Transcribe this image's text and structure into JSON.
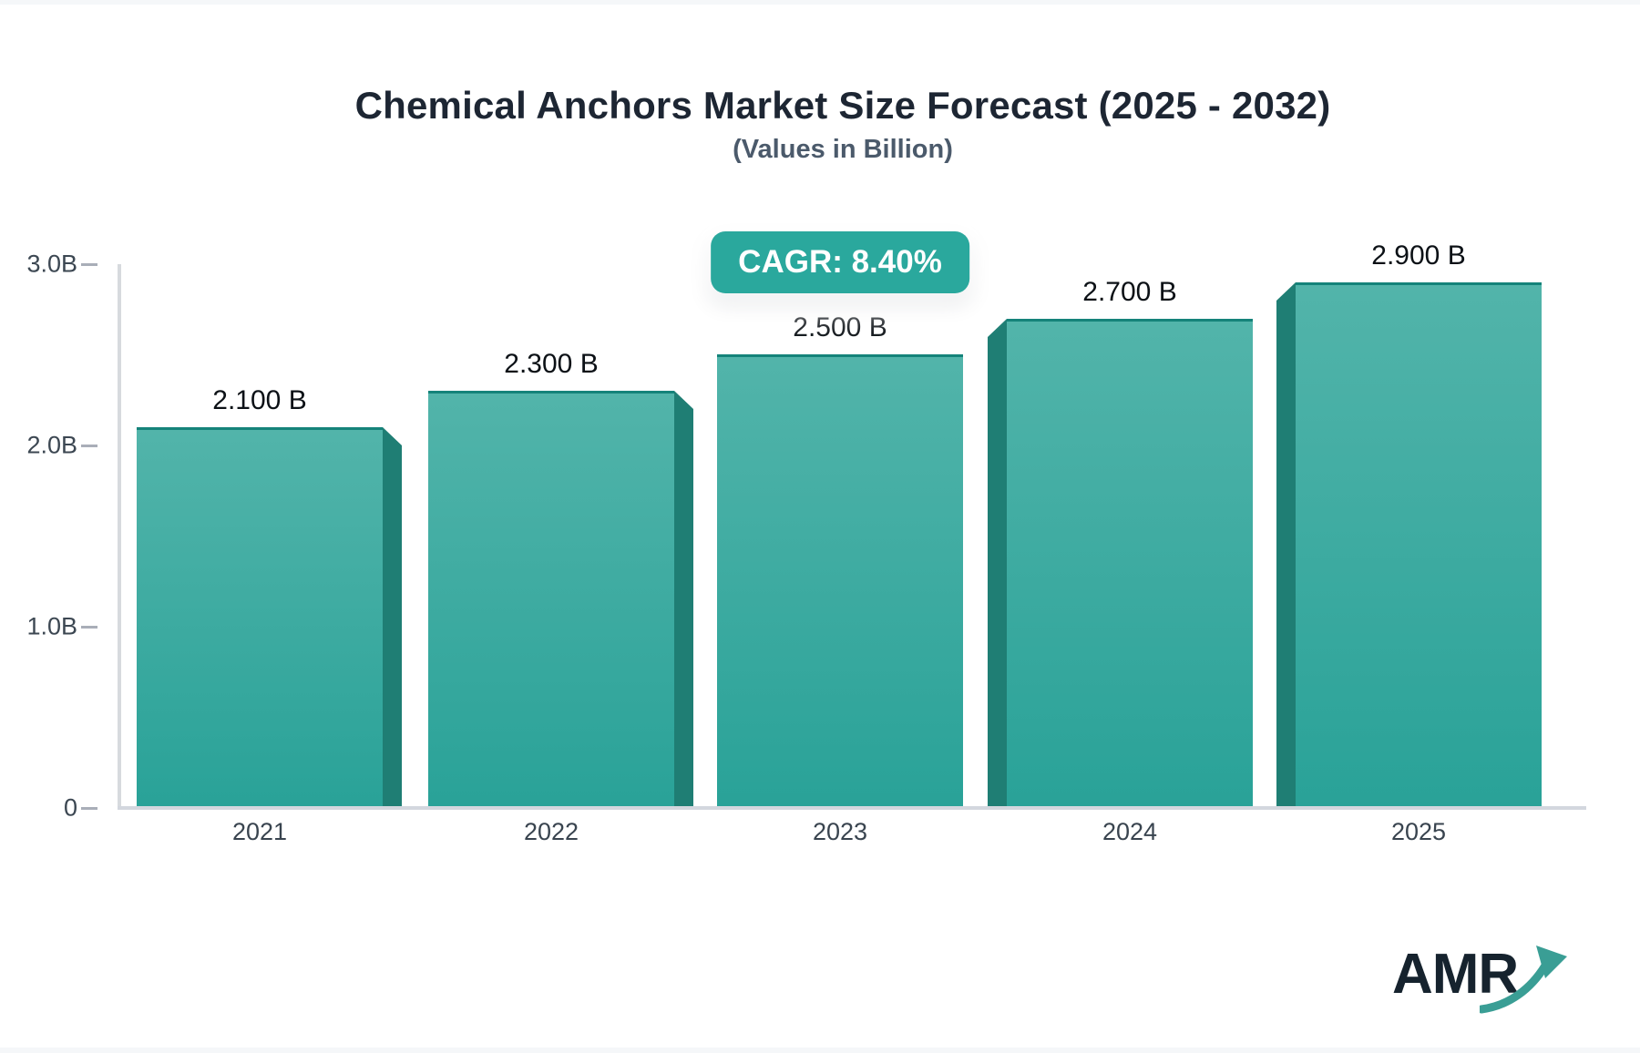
{
  "header": {
    "title": "Chemical Anchors Market Size Forecast (2025 - 2032)",
    "subtitle": "(Values in Billion)"
  },
  "badge": {
    "label": "CAGR: 8.40%",
    "background": "#2aa89d",
    "text_color": "#ffffff"
  },
  "chart_data": {
    "type": "bar",
    "title": "Chemical Anchors Market Size Forecast (2025 - 2032)",
    "subtitle": "(Values in Billion)",
    "unit": "Billion",
    "categories": [
      "2021",
      "2022",
      "2023",
      "2024",
      "2025"
    ],
    "values": [
      2.1,
      2.3,
      2.5,
      2.7,
      2.9
    ],
    "value_labels": [
      "2.100 B",
      "2.300 B",
      "2.500 B",
      "2.700 B",
      "2.900 B"
    ],
    "annotation": "CAGR: 8.40%",
    "ylim": [
      0,
      3
    ],
    "yticks": [
      {
        "value": 0,
        "label": "0"
      },
      {
        "value": 1,
        "label": "1.0B"
      },
      {
        "value": 2,
        "label": "2.0B"
      },
      {
        "value": 3,
        "label": "3.0B"
      }
    ],
    "grid": false,
    "legend": "none",
    "bar_color_top": "#52b4aa",
    "bar_color_bottom": "#29a298",
    "bar_side_color": "#1f7e74",
    "bar_top_edge_color": "#15837a",
    "axis_color": "#d5d9de",
    "tick_color": "#a9aeb8",
    "label_color": "#39444f"
  },
  "logo": {
    "text": "AMR",
    "text_color": "#16232e",
    "arrow_color": "#3a9e95"
  }
}
